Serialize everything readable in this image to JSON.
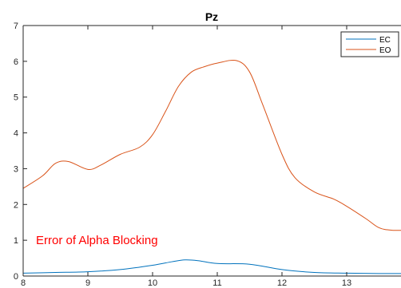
{
  "chart_data": {
    "type": "line",
    "title": "Pz",
    "xlabel": "",
    "ylabel": "",
    "xlim": [
      8,
      14
    ],
    "ylim": [
      0,
      7
    ],
    "xticks": [
      8,
      9,
      10,
      11,
      12,
      13
    ],
    "yticks": [
      0,
      1,
      2,
      3,
      4,
      5,
      6,
      7
    ],
    "grid": false,
    "legend": "top-right",
    "annotation": "Error of Alpha Blocking",
    "colors": {
      "EC": "#0072bd",
      "EO": "#d95319",
      "annotation": "#ff0000"
    },
    "series": [
      {
        "name": "EC",
        "x": [
          8.0,
          8.5,
          9.0,
          9.5,
          10.0,
          10.3,
          10.5,
          10.7,
          11.0,
          11.5,
          12.0,
          12.5,
          13.0,
          13.5,
          14.0
        ],
        "y": [
          0.08,
          0.1,
          0.12,
          0.18,
          0.3,
          0.4,
          0.45,
          0.43,
          0.35,
          0.33,
          0.18,
          0.1,
          0.08,
          0.07,
          0.07
        ]
      },
      {
        "name": "EO",
        "x": [
          8.0,
          8.3,
          8.5,
          8.7,
          9.0,
          9.2,
          9.5,
          9.8,
          10.0,
          10.2,
          10.4,
          10.6,
          10.8,
          11.0,
          11.3,
          11.5,
          11.7,
          12.0,
          12.2,
          12.5,
          12.8,
          13.0,
          13.3,
          13.5,
          13.7,
          14.0
        ],
        "y": [
          2.45,
          2.8,
          3.15,
          3.2,
          2.98,
          3.1,
          3.4,
          3.6,
          3.95,
          4.6,
          5.3,
          5.7,
          5.85,
          5.95,
          6.02,
          5.7,
          4.8,
          3.4,
          2.75,
          2.35,
          2.15,
          1.95,
          1.6,
          1.35,
          1.28,
          1.28
        ]
      }
    ]
  }
}
